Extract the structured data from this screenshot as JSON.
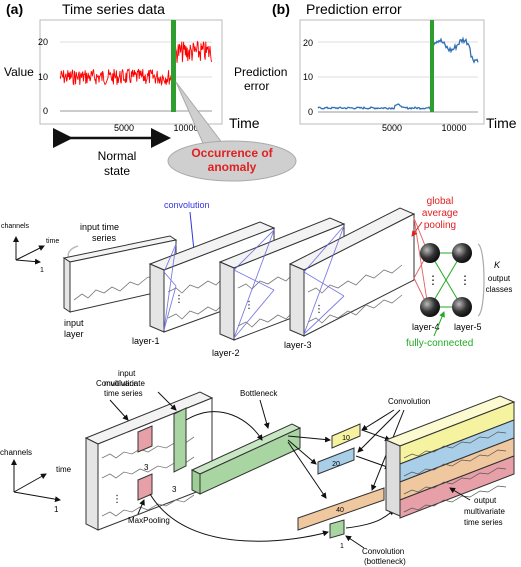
{
  "panel_a": {
    "label": "(a)",
    "title": "Time series data",
    "ylabel": "Value",
    "xlabel": "Time",
    "y_ticks": [
      "0",
      "10",
      "20"
    ],
    "x_ticks": [
      "5000",
      "10000"
    ],
    "normal_state_line1": "Normal",
    "normal_state_line2": "state",
    "anomaly_line1": "Occurrence of",
    "anomaly_line2": "anomaly",
    "colors": {
      "series": "#ff0000",
      "anomaly_marker": "#2e9e2e",
      "callout": "#e02020"
    }
  },
  "panel_b": {
    "label": "(b)",
    "title": "Prediction error",
    "ylabel_line1": "Prediction",
    "ylabel_line2": "error",
    "xlabel": "Time",
    "y_ticks": [
      "0",
      "10",
      "20"
    ],
    "x_ticks": [
      "5000",
      "10000"
    ],
    "colors": {
      "series": "#2f6fb5",
      "anomaly_marker": "#2e9e2e"
    }
  },
  "middle": {
    "axes": {
      "channels": "channels",
      "time": "time",
      "one": "1"
    },
    "input_time_series_line1": "input time",
    "input_time_series_line2": "series",
    "convolution": "convolution",
    "gap_line1": "global",
    "gap_line2": "average",
    "gap_line3": "pooling",
    "k_label": "K",
    "output_line1": "output",
    "output_line2": "classes",
    "input_layer_line1": "input",
    "input_layer_line2": "layer",
    "layer1": "layer-1",
    "layer2": "layer-2",
    "layer3": "layer-3",
    "layer4": "layer-4",
    "layer5": "layer-5",
    "fully_connected": "fully-connected",
    "colors": {
      "convolution": "#3333dd",
      "gap": "#e02020",
      "fully_connected": "#22aa22"
    }
  },
  "bottom": {
    "axes": {
      "channels": "channels",
      "time": "time",
      "one": "1"
    },
    "input_line1": "input",
    "input_line2": "multivariate",
    "input_line3": "time series",
    "convolution": "Convolution",
    "bottleneck": "Bottleneck",
    "convolution_right": "Convolution",
    "maxpooling": "MaxPooling",
    "kernel_sizes": [
      "10",
      "20",
      "40"
    ],
    "three_a": "3",
    "three_b": "3",
    "one_small": "1",
    "conv_bottleneck_line1": "Convolution",
    "conv_bottleneck_line2": "(bottleneck)",
    "output_line1": "output",
    "output_line2": "multivariate",
    "output_line3": "time series",
    "colors": {
      "green": "#a8d5a2",
      "pink": "#e8a0a8",
      "blue": "#a9cfe8",
      "orange": "#f0c8a0",
      "yellow": "#f5f3a0"
    }
  }
}
